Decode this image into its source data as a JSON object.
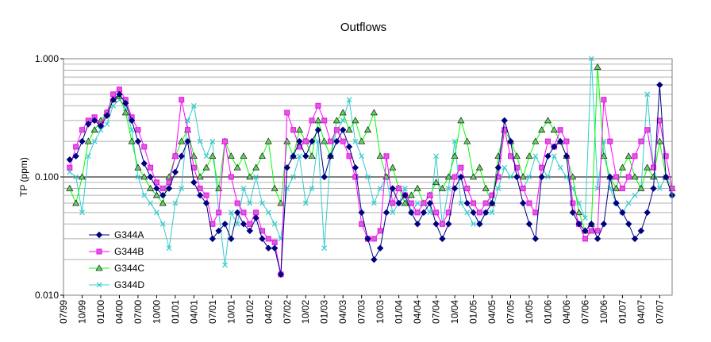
{
  "chart_data": {
    "type": "line",
    "title": "Outflows",
    "ylabel": "TP (ppm)",
    "xlabel": "",
    "yscale": "log",
    "ylim": [
      0.01,
      1.0
    ],
    "ytick_labels": [
      "0.010",
      "0.100",
      "1.000"
    ],
    "xlim": [
      "1999-07",
      "2007-09"
    ],
    "xtick_labels": [
      "07/99",
      "10/99",
      "01/00",
      "04/00",
      "07/00",
      "10/00",
      "01/01",
      "04/01",
      "07/01",
      "10/01",
      "01/02",
      "04/02",
      "07/02",
      "10/02",
      "01/03",
      "04/03",
      "07/03",
      "10/03",
      "01/04",
      "04/04",
      "07/04",
      "10/04",
      "01/05",
      "04/05",
      "07/05",
      "10/05",
      "01/06",
      "04/06",
      "07/06",
      "10/06",
      "01/07",
      "04/07",
      "07/07"
    ],
    "grid": "horizontal minor",
    "legend_position": "lower-left",
    "series": [
      {
        "name": "G344A",
        "color": "#000080",
        "marker": "diamond",
        "x": [
          "1999-08",
          "1999-09",
          "1999-10",
          "1999-11",
          "1999-12",
          "2000-01",
          "2000-02",
          "2000-03",
          "2000-04",
          "2000-05",
          "2000-06",
          "2000-07",
          "2000-08",
          "2000-09",
          "2000-10",
          "2000-11",
          "2000-12",
          "2001-01",
          "2001-02",
          "2001-03",
          "2001-04",
          "2001-05",
          "2001-06",
          "2001-07",
          "2001-08",
          "2001-09",
          "2001-10",
          "2001-11",
          "2001-12",
          "2002-01",
          "2002-02",
          "2002-03",
          "2002-04",
          "2002-05",
          "2002-06",
          "2002-07",
          "2002-08",
          "2002-09",
          "2002-10",
          "2002-11",
          "2002-12",
          "2003-01",
          "2003-02",
          "2003-03",
          "2003-04",
          "2003-05",
          "2003-06",
          "2003-07",
          "2003-08",
          "2003-09",
          "2003-10",
          "2003-11",
          "2003-12",
          "2004-01",
          "2004-02",
          "2004-03",
          "2004-04",
          "2004-05",
          "2004-06",
          "2004-07",
          "2004-08",
          "2004-09",
          "2004-10",
          "2004-11",
          "2004-12",
          "2005-01",
          "2005-02",
          "2005-03",
          "2005-04",
          "2005-05",
          "2005-06",
          "2005-07",
          "2005-08",
          "2005-09",
          "2005-10",
          "2005-11",
          "2005-12",
          "2006-01",
          "2006-02",
          "2006-03",
          "2006-04",
          "2006-05",
          "2006-06",
          "2006-07",
          "2006-08",
          "2006-09",
          "2006-10",
          "2006-11",
          "2006-12",
          "2007-01",
          "2007-02",
          "2007-03",
          "2007-04",
          "2007-05",
          "2007-06",
          "2007-07",
          "2007-08",
          "2007-09"
        ],
        "values": [
          0.14,
          0.15,
          0.2,
          0.28,
          0.3,
          0.27,
          0.33,
          0.45,
          0.5,
          0.42,
          0.3,
          0.2,
          0.13,
          0.1,
          0.08,
          0.07,
          0.08,
          0.11,
          0.15,
          0.2,
          0.09,
          0.07,
          0.06,
          0.03,
          0.035,
          0.04,
          0.03,
          0.05,
          0.04,
          0.035,
          0.045,
          0.03,
          0.025,
          0.025,
          0.015,
          0.12,
          0.15,
          0.2,
          0.15,
          0.2,
          0.25,
          0.1,
          0.15,
          0.2,
          0.25,
          0.18,
          0.12,
          0.05,
          0.03,
          0.02,
          0.025,
          0.05,
          0.08,
          0.06,
          0.07,
          0.05,
          0.04,
          0.05,
          0.06,
          0.04,
          0.03,
          0.04,
          0.08,
          0.1,
          0.06,
          0.05,
          0.04,
          0.05,
          0.06,
          0.12,
          0.3,
          0.2,
          0.1,
          0.06,
          0.04,
          0.03,
          0.1,
          0.15,
          0.18,
          0.2,
          0.15,
          0.05,
          0.04,
          0.035,
          0.04,
          0.03,
          0.04,
          0.1,
          0.06,
          0.05,
          0.04,
          0.03,
          0.035,
          0.05,
          0.08,
          0.6,
          0.1,
          0.07
        ]
      },
      {
        "name": "G344B",
        "color": "#FF00FF",
        "marker": "square",
        "x": [
          "1999-08",
          "1999-09",
          "1999-10",
          "1999-11",
          "1999-12",
          "2000-01",
          "2000-02",
          "2000-03",
          "2000-04",
          "2000-05",
          "2000-06",
          "2000-07",
          "2000-08",
          "2000-09",
          "2000-10",
          "2000-11",
          "2000-12",
          "2001-01",
          "2001-02",
          "2001-03",
          "2001-04",
          "2001-05",
          "2001-06",
          "2001-07",
          "2001-08",
          "2001-09",
          "2001-10",
          "2001-11",
          "2001-12",
          "2002-01",
          "2002-02",
          "2002-03",
          "2002-04",
          "2002-05",
          "2002-06",
          "2002-07",
          "2002-08",
          "2002-09",
          "2002-10",
          "2002-11",
          "2002-12",
          "2003-01",
          "2003-02",
          "2003-03",
          "2003-04",
          "2003-05",
          "2003-06",
          "2003-07",
          "2003-08",
          "2003-09",
          "2003-10",
          "2003-11",
          "2003-12",
          "2004-01",
          "2004-02",
          "2004-03",
          "2004-04",
          "2004-05",
          "2004-06",
          "2004-07",
          "2004-08",
          "2004-09",
          "2004-10",
          "2004-11",
          "2004-12",
          "2005-01",
          "2005-02",
          "2005-03",
          "2005-04",
          "2005-05",
          "2005-06",
          "2005-07",
          "2005-08",
          "2005-09",
          "2005-10",
          "2005-11",
          "2005-12",
          "2006-01",
          "2006-02",
          "2006-03",
          "2006-04",
          "2006-05",
          "2006-06",
          "2006-07",
          "2006-08",
          "2006-09",
          "2006-10",
          "2006-11",
          "2006-12",
          "2007-01",
          "2007-02",
          "2007-03",
          "2007-04",
          "2007-05",
          "2007-06",
          "2007-07",
          "2007-08",
          "2007-09"
        ],
        "values": [
          0.12,
          0.18,
          0.25,
          0.3,
          0.32,
          0.28,
          0.35,
          0.5,
          0.55,
          0.45,
          0.32,
          0.25,
          0.18,
          0.12,
          0.09,
          0.08,
          0.09,
          0.15,
          0.45,
          0.25,
          0.12,
          0.08,
          0.07,
          0.04,
          0.05,
          0.2,
          0.1,
          0.06,
          0.05,
          0.04,
          0.05,
          0.035,
          0.03,
          0.028,
          0.015,
          0.35,
          0.25,
          0.18,
          0.2,
          0.3,
          0.4,
          0.3,
          0.2,
          0.25,
          0.2,
          0.15,
          0.1,
          0.04,
          0.03,
          0.03,
          0.035,
          0.15,
          0.06,
          0.08,
          0.07,
          0.06,
          0.05,
          0.06,
          0.07,
          0.05,
          0.04,
          0.05,
          0.1,
          0.12,
          0.08,
          0.06,
          0.05,
          0.06,
          0.07,
          0.1,
          0.25,
          0.15,
          0.12,
          0.08,
          0.06,
          0.05,
          0.12,
          0.2,
          0.18,
          0.25,
          0.2,
          0.06,
          0.04,
          0.03,
          0.035,
          0.035,
          0.45,
          0.2,
          0.1,
          0.08,
          0.1,
          0.15,
          0.2,
          0.25,
          0.12,
          0.3,
          0.15,
          0.08
        ]
      },
      {
        "name": "G344C",
        "color": "#00FF00",
        "marker": "triangle",
        "x": [
          "1999-08",
          "1999-09",
          "1999-10",
          "1999-11",
          "1999-12",
          "2000-01",
          "2000-02",
          "2000-03",
          "2000-04",
          "2000-05",
          "2000-06",
          "2000-07",
          "2000-08",
          "2000-09",
          "2000-10",
          "2000-11",
          "2000-12",
          "2001-01",
          "2001-02",
          "2001-03",
          "2001-04",
          "2001-05",
          "2001-06",
          "2001-07",
          "2001-08",
          "2001-09",
          "2001-10",
          "2001-11",
          "2001-12",
          "2002-01",
          "2002-02",
          "2002-03",
          "2002-04",
          "2002-05",
          "2002-06",
          "2002-07",
          "2002-08",
          "2002-09",
          "2002-10",
          "2002-11",
          "2002-12",
          "2003-01",
          "2003-02",
          "2003-03",
          "2003-04",
          "2003-05",
          "2003-06",
          "2003-07",
          "2003-08",
          "2003-09",
          "2003-10",
          "2003-11",
          "2003-12",
          "2004-01",
          "2004-02",
          "2004-03",
          "2004-04",
          "2004-05",
          "2004-06",
          "2004-07",
          "2004-08",
          "2004-09",
          "2004-10",
          "2004-11",
          "2004-12",
          "2005-01",
          "2005-02",
          "2005-03",
          "2005-04",
          "2005-05",
          "2005-06",
          "2005-07",
          "2005-08",
          "2005-09",
          "2005-10",
          "2005-11",
          "2005-12",
          "2006-01",
          "2006-02",
          "2006-03",
          "2006-04",
          "2006-05",
          "2006-06",
          "2006-07",
          "2006-08",
          "2006-09",
          "2006-10",
          "2006-11",
          "2006-12",
          "2007-01",
          "2007-02",
          "2007-03",
          "2007-04",
          "2007-05",
          "2007-06",
          "2007-07",
          "2007-08",
          "2007-09"
        ],
        "values": [
          0.08,
          0.06,
          0.1,
          0.2,
          0.25,
          0.3,
          0.35,
          0.45,
          0.48,
          0.35,
          0.2,
          0.12,
          0.1,
          0.08,
          0.07,
          0.06,
          0.1,
          0.15,
          0.2,
          0.25,
          0.15,
          0.1,
          0.12,
          0.15,
          0.08,
          0.2,
          0.15,
          0.12,
          0.15,
          0.1,
          0.12,
          0.15,
          0.2,
          0.08,
          0.06,
          0.2,
          0.15,
          0.25,
          0.2,
          0.15,
          0.3,
          0.2,
          0.15,
          0.3,
          0.35,
          0.25,
          0.3,
          0.2,
          0.25,
          0.35,
          0.15,
          0.1,
          0.12,
          0.08,
          0.06,
          0.07,
          0.08,
          0.06,
          0.07,
          0.09,
          0.08,
          0.1,
          0.15,
          0.3,
          0.2,
          0.1,
          0.12,
          0.08,
          0.06,
          0.15,
          0.25,
          0.2,
          0.15,
          0.1,
          0.15,
          0.2,
          0.25,
          0.3,
          0.25,
          0.2,
          0.15,
          0.1,
          0.05,
          0.035,
          0.04,
          0.85,
          0.15,
          0.1,
          0.08,
          0.12,
          0.15,
          0.1,
          0.08,
          0.12,
          0.1,
          0.2,
          0.1,
          0.08
        ]
      },
      {
        "name": "G344D",
        "color": "#33CCCC",
        "marker": "x",
        "x": [
          "1999-08",
          "1999-09",
          "1999-10",
          "1999-11",
          "1999-12",
          "2000-01",
          "2000-02",
          "2000-03",
          "2000-04",
          "2000-05",
          "2000-06",
          "2000-07",
          "2000-08",
          "2000-09",
          "2000-10",
          "2000-11",
          "2000-12",
          "2001-01",
          "2001-02",
          "2001-03",
          "2001-04",
          "2001-05",
          "2001-06",
          "2001-07",
          "2001-08",
          "2001-09",
          "2001-10",
          "2001-11",
          "2001-12",
          "2002-01",
          "2002-02",
          "2002-03",
          "2002-04",
          "2002-05",
          "2002-06",
          "2002-07",
          "2002-08",
          "2002-09",
          "2002-10",
          "2002-11",
          "2002-12",
          "2003-01",
          "2003-02",
          "2003-03",
          "2003-04",
          "2003-05",
          "2003-06",
          "2003-07",
          "2003-08",
          "2003-09",
          "2003-10",
          "2003-11",
          "2003-12",
          "2004-01",
          "2004-02",
          "2004-03",
          "2004-04",
          "2004-05",
          "2004-06",
          "2004-07",
          "2004-08",
          "2004-09",
          "2004-10",
          "2004-11",
          "2004-12",
          "2005-01",
          "2005-02",
          "2005-03",
          "2005-04",
          "2005-05",
          "2005-06",
          "2005-07",
          "2005-08",
          "2005-09",
          "2005-10",
          "2005-11",
          "2005-12",
          "2006-01",
          "2006-02",
          "2006-03",
          "2006-04",
          "2006-05",
          "2006-06",
          "2006-07",
          "2006-08",
          "2006-09",
          "2006-10",
          "2006-11",
          "2006-12",
          "2007-01",
          "2007-02",
          "2007-03",
          "2007-04",
          "2007-05",
          "2007-06",
          "2007-07",
          "2007-08",
          "2007-09"
        ],
        "values": [
          0.11,
          0.1,
          0.05,
          0.15,
          0.2,
          0.25,
          0.28,
          0.4,
          0.45,
          0.38,
          0.25,
          0.1,
          0.07,
          0.06,
          0.05,
          0.04,
          0.025,
          0.06,
          0.08,
          0.3,
          0.4,
          0.2,
          0.15,
          0.2,
          0.05,
          0.018,
          0.05,
          0.04,
          0.08,
          0.06,
          0.1,
          0.06,
          0.05,
          0.04,
          0.03,
          0.08,
          0.1,
          0.15,
          0.06,
          0.08,
          0.2,
          0.025,
          0.15,
          0.25,
          0.3,
          0.45,
          0.2,
          0.15,
          0.1,
          0.06,
          0.08,
          0.1,
          0.05,
          0.06,
          0.08,
          0.05,
          0.06,
          0.06,
          0.05,
          0.15,
          0.04,
          0.08,
          0.2,
          0.06,
          0.05,
          0.04,
          0.04,
          0.05,
          0.05,
          0.08,
          0.12,
          0.1,
          0.12,
          0.08,
          0.1,
          0.15,
          0.12,
          0.1,
          0.15,
          0.12,
          0.1,
          0.08,
          0.06,
          0.045,
          1.0,
          0.08,
          0.2,
          0.08,
          0.06,
          0.05,
          0.06,
          0.07,
          0.08,
          0.5,
          0.12,
          0.08,
          0.1,
          0.07
        ]
      }
    ]
  }
}
